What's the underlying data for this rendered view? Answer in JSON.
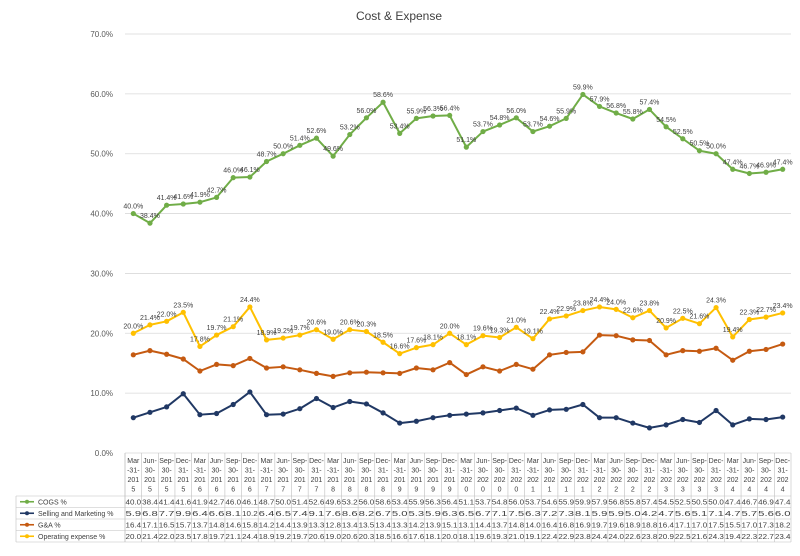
{
  "chart_data": {
    "type": "line",
    "title": "Cost & Expense",
    "ylim": [
      0,
      70
    ],
    "y_ticks": [
      "0.0%",
      "10.0%",
      "20.0%",
      "30.0%",
      "40.0%",
      "50.0%",
      "60.0%",
      "70.0%"
    ],
    "grid": "horizontal",
    "legend": "bottom-table",
    "categories": [
      "Mar-31-2015",
      "Jun-30-2015",
      "Sep-30-2015",
      "Dec-31-2015",
      "Mar-31-2016",
      "Jun-30-2016",
      "Sep-30-2016",
      "Dec-31-2016",
      "Mar-31-2017",
      "Jun-30-2017",
      "Sep-30-2017",
      "Dec-31-2017",
      "Mar-31-2018",
      "Jun-30-2018",
      "Sep-30-2018",
      "Dec-31-2018",
      "Mar-31-2019",
      "Jun-30-2019",
      "Sep-30-2019",
      "Dec-31-2019",
      "Mar-31-2020",
      "Jun-30-2020",
      "Sep-30-2020",
      "Dec-31-2020",
      "Mar-31-2021",
      "Jun-30-2021",
      "Sep-30-2021",
      "Dec-31-2021",
      "Mar-31-2022",
      "Jun-30-2022",
      "Sep-30-2022",
      "Dec-31-2022",
      "Mar-31-2023",
      "Jun-30-2023",
      "Sep-30-2023",
      "Dec-31-2023",
      "Mar-31-2024",
      "Jun-30-2024",
      "Sep-30-2024",
      "Dec-31-2024"
    ],
    "category_lines": [
      [
        "Mar",
        "-31-",
        "201",
        "5"
      ],
      [
        "Jun-",
        "30-",
        "201",
        "5"
      ],
      [
        "Sep-",
        "30-",
        "201",
        "5"
      ],
      [
        "Dec-",
        "31-",
        "201",
        "5"
      ],
      [
        "Mar",
        "-31-",
        "201",
        "6"
      ],
      [
        "Jun-",
        "30-",
        "201",
        "6"
      ],
      [
        "Sep-",
        "30-",
        "201",
        "6"
      ],
      [
        "Dec-",
        "31-",
        "201",
        "6"
      ],
      [
        "Mar",
        "-31-",
        "201",
        "7"
      ],
      [
        "Jun-",
        "30-",
        "201",
        "7"
      ],
      [
        "Sep-",
        "30-",
        "201",
        "7"
      ],
      [
        "Dec-",
        "31-",
        "201",
        "7"
      ],
      [
        "Mar",
        "-31-",
        "201",
        "8"
      ],
      [
        "Jun-",
        "30-",
        "201",
        "8"
      ],
      [
        "Sep-",
        "30-",
        "201",
        "8"
      ],
      [
        "Dec-",
        "31-",
        "201",
        "8"
      ],
      [
        "Mar",
        "-31-",
        "201",
        "9"
      ],
      [
        "Jun-",
        "30-",
        "201",
        "9"
      ],
      [
        "Sep-",
        "30-",
        "201",
        "9"
      ],
      [
        "Dec-",
        "31-",
        "201",
        "9"
      ],
      [
        "Mar",
        "-31-",
        "202",
        "0"
      ],
      [
        "Jun-",
        "30-",
        "202",
        "0"
      ],
      [
        "Sep-",
        "30-",
        "202",
        "0"
      ],
      [
        "Dec-",
        "31-",
        "202",
        "0"
      ],
      [
        "Mar",
        "-31-",
        "202",
        "1"
      ],
      [
        "Jun-",
        "30-",
        "202",
        "1"
      ],
      [
        "Sep-",
        "30-",
        "202",
        "1"
      ],
      [
        "Dec-",
        "31-",
        "202",
        "1"
      ],
      [
        "Mar",
        "-31-",
        "202",
        "2"
      ],
      [
        "Jun-",
        "30-",
        "202",
        "2"
      ],
      [
        "Sep-",
        "30-",
        "202",
        "2"
      ],
      [
        "Dec-",
        "31-",
        "202",
        "2"
      ],
      [
        "Mar",
        "-31-",
        "202",
        "3"
      ],
      [
        "Jun-",
        "30-",
        "202",
        "3"
      ],
      [
        "Sep-",
        "30-",
        "202",
        "3"
      ],
      [
        "Dec-",
        "31-",
        "202",
        "3"
      ],
      [
        "Mar",
        "-31-",
        "202",
        "4"
      ],
      [
        "Jun-",
        "30-",
        "202",
        "4"
      ],
      [
        "Sep-",
        "30-",
        "202",
        "4"
      ],
      [
        "Dec-",
        "31-",
        "202",
        "4"
      ]
    ],
    "series": [
      {
        "name": "COGS %",
        "color": "#70AD47",
        "labels_above": true,
        "values": [
          40.0,
          38.4,
          41.4,
          41.6,
          41.9,
          42.7,
          46.0,
          46.1,
          48.7,
          50.0,
          51.4,
          52.6,
          49.6,
          53.2,
          56.0,
          58.6,
          53.4,
          55.9,
          56.3,
          56.4,
          51.1,
          53.7,
          54.8,
          56.0,
          53.7,
          54.6,
          55.9,
          59.9,
          57.9,
          56.8,
          55.8,
          57.4,
          54.5,
          52.5,
          50.5,
          50.0,
          47.4,
          46.7,
          46.9,
          47.4
        ]
      },
      {
        "name": "Selling and Marketing %",
        "color": "#203864",
        "labels_above": false,
        "values": [
          5.9,
          6.8,
          7.7,
          9.9,
          6.4,
          6.6,
          8.1,
          10.2,
          6.4,
          6.5,
          7.4,
          9.1,
          7.6,
          8.6,
          8.2,
          6.7,
          5.0,
          5.3,
          5.9,
          6.3,
          6.5,
          6.7,
          7.1,
          7.5,
          6.3,
          7.2,
          7.3,
          8.1,
          5.9,
          5.9,
          5.0,
          4.2,
          4.7,
          5.6,
          5.1,
          7.1,
          4.7,
          5.7,
          5.6,
          6.0
        ]
      },
      {
        "name": "G&A %",
        "color": "#C55A11",
        "labels_above": false,
        "values": [
          16.4,
          17.1,
          16.5,
          15.7,
          13.7,
          14.8,
          14.6,
          15.8,
          14.2,
          14.4,
          13.9,
          13.3,
          12.8,
          13.4,
          13.5,
          13.4,
          13.3,
          14.2,
          13.9,
          15.1,
          13.1,
          14.4,
          13.7,
          14.8,
          14.0,
          16.4,
          16.8,
          16.9,
          19.7,
          19.6,
          18.9,
          18.8,
          16.4,
          17.1,
          17.0,
          17.5,
          15.5,
          17.0,
          17.3,
          18.2
        ]
      },
      {
        "name": "Operating expense %",
        "color": "#FFC000",
        "labels_above": true,
        "values": [
          20.0,
          21.4,
          22.0,
          23.5,
          17.8,
          19.7,
          21.1,
          24.4,
          18.9,
          19.2,
          19.7,
          20.6,
          19.0,
          20.6,
          20.3,
          18.5,
          16.6,
          17.6,
          18.1,
          20.0,
          18.1,
          19.6,
          19.3,
          21.0,
          19.1,
          22.4,
          22.9,
          23.8,
          24.4,
          24.0,
          22.6,
          23.8,
          20.9,
          22.5,
          21.6,
          24.3,
          19.4,
          22.3,
          22.7,
          23.4
        ]
      }
    ]
  }
}
